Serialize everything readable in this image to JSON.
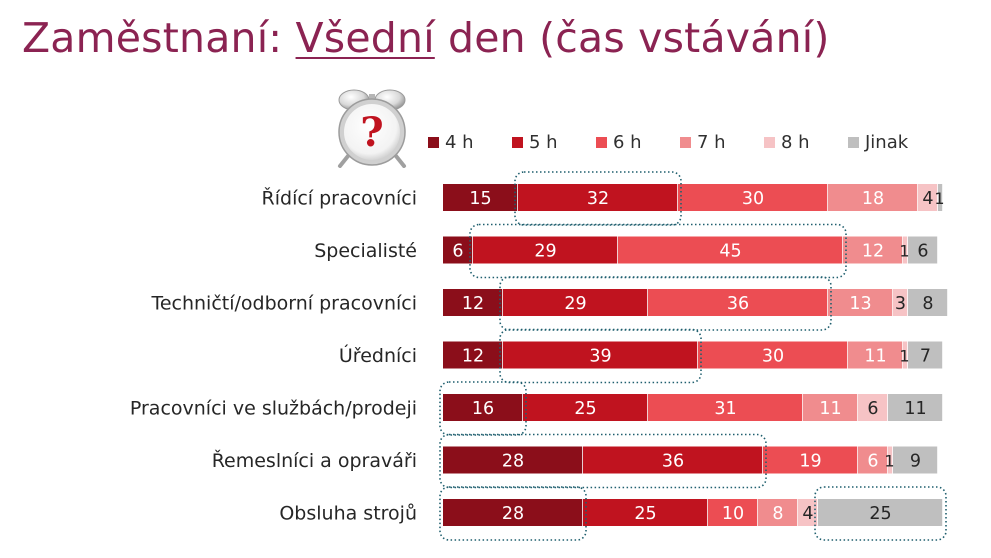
{
  "title": {
    "prefix": "Zaměstnaní: ",
    "emphasis": "Všední",
    "suffix": " den (čas vstávání)"
  },
  "icon": "alarm-clock-question-icon",
  "colors": {
    "title": "#8b2352",
    "series": [
      "#8b0e1a",
      "#c0131f",
      "#ec4d53",
      "#f08c8e",
      "#f6c3c5",
      "#bfbfbf"
    ],
    "highlight": "#1f5f6e"
  },
  "chart_data": {
    "type": "bar",
    "orientation": "horizontal",
    "stacked": true,
    "legend_position": "top",
    "categories": [
      "Řídící pracovníci",
      "Specialisté",
      "Techničtí/odborní pracovníci",
      "Úředníci",
      "Pracovníci ve službách/prodeji",
      "Řemeslníci a opraváři",
      "Obsluha strojů"
    ],
    "series": [
      {
        "name": "4 h",
        "values": [
          15,
          6,
          12,
          12,
          16,
          28,
          28
        ]
      },
      {
        "name": "5 h",
        "values": [
          32,
          29,
          29,
          39,
          25,
          36,
          25
        ]
      },
      {
        "name": "6 h",
        "values": [
          30,
          45,
          36,
          30,
          31,
          19,
          10
        ]
      },
      {
        "name": "7 h",
        "values": [
          18,
          12,
          13,
          11,
          11,
          6,
          8
        ]
      },
      {
        "name": "8 h",
        "values": [
          4,
          1,
          3,
          1,
          6,
          1,
          4
        ]
      },
      {
        "name": "Jinak",
        "values": [
          1,
          6,
          8,
          7,
          11,
          9,
          25
        ]
      }
    ],
    "xlim": [
      0,
      100
    ],
    "highlights": [
      {
        "category": 0,
        "series": [
          1
        ]
      },
      {
        "category": 1,
        "series": [
          1,
          2
        ]
      },
      {
        "category": 2,
        "series": [
          1,
          2
        ]
      },
      {
        "category": 3,
        "series": [
          1
        ]
      },
      {
        "category": 4,
        "series": [
          0
        ]
      },
      {
        "category": 5,
        "series": [
          0,
          1
        ]
      },
      {
        "category": 6,
        "series": [
          0
        ]
      },
      {
        "category": 6,
        "series": [
          5
        ]
      }
    ]
  }
}
